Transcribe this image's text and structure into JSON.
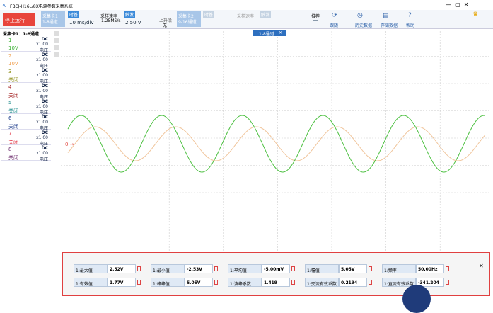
{
  "title_bar": {
    "title": "FBCJ-H16L/8X电源参数采集系统"
  },
  "toolbar": {
    "stop_button": "停止运行",
    "card1": {
      "name": "采集卡1",
      "channels": "1-8通道"
    },
    "timebase": {
      "label": "时基",
      "value": "10 ms/div"
    },
    "sample_rate": {
      "label": "采样速率",
      "value": "1.25MS/s"
    },
    "trigger": {
      "label": "触发",
      "value": "2.50 V",
      "edge": "上升沿",
      "mode": "无"
    },
    "card2": {
      "name": "采集卡2",
      "channels": "9-16通道",
      "timebase": "时基",
      "sample_rate": "采样速率",
      "trigger": "触发"
    },
    "recommend": "推荐",
    "actions": [
      "跟随",
      "历史数据",
      "存储数据",
      "帮助"
    ]
  },
  "channel_panel": {
    "title": "采集卡1：1-8通道",
    "channels": [
      {
        "number": "1",
        "coupling": "DC",
        "scale": "x1.00",
        "kind": "电压",
        "range": "10V"
      },
      {
        "number": "2",
        "coupling": "DC",
        "scale": "x1.00",
        "kind": "电压",
        "range": "10V"
      },
      {
        "number": "3",
        "coupling": "DC",
        "scale": "x1.00",
        "kind": "电压",
        "range": "关闭"
      },
      {
        "number": "4",
        "coupling": "DC",
        "scale": "x1.00",
        "kind": "电压",
        "range": "关闭"
      },
      {
        "number": "5",
        "coupling": "DC",
        "scale": "x1.00",
        "kind": "电压",
        "range": "关闭"
      },
      {
        "number": "6",
        "coupling": "DC",
        "scale": "x1.00",
        "kind": "电压",
        "range": "关闭"
      },
      {
        "number": "7",
        "coupling": "DC",
        "scale": "x1.00",
        "kind": "电压",
        "range": "关闭"
      },
      {
        "number": "8",
        "coupling": "DC",
        "scale": "x1.00",
        "kind": "电压",
        "range": "关闭"
      }
    ]
  },
  "plot": {
    "tab": "1-8通道",
    "zero_marker": "0 →"
  },
  "measurements": [
    {
      "label": "1:最大值",
      "value": "2.52V"
    },
    {
      "label": "1:最小值",
      "value": "-2.53V"
    },
    {
      "label": "1:平均值",
      "value": "-5.00mV"
    },
    {
      "label": "1:幅值",
      "value": "5.05V"
    },
    {
      "label": "1:频率",
      "value": "50.00Hz"
    },
    {
      "label": "1:有效值",
      "value": "1.77V"
    },
    {
      "label": "1:峰峰值",
      "value": "5.05V"
    },
    {
      "label": "1:波峰系数",
      "value": "1.419"
    },
    {
      "label": "1:交流有效系数",
      "value": "0.2194"
    },
    {
      "label": "1:直流有效系数",
      "value": "-341.204"
    }
  ]
}
